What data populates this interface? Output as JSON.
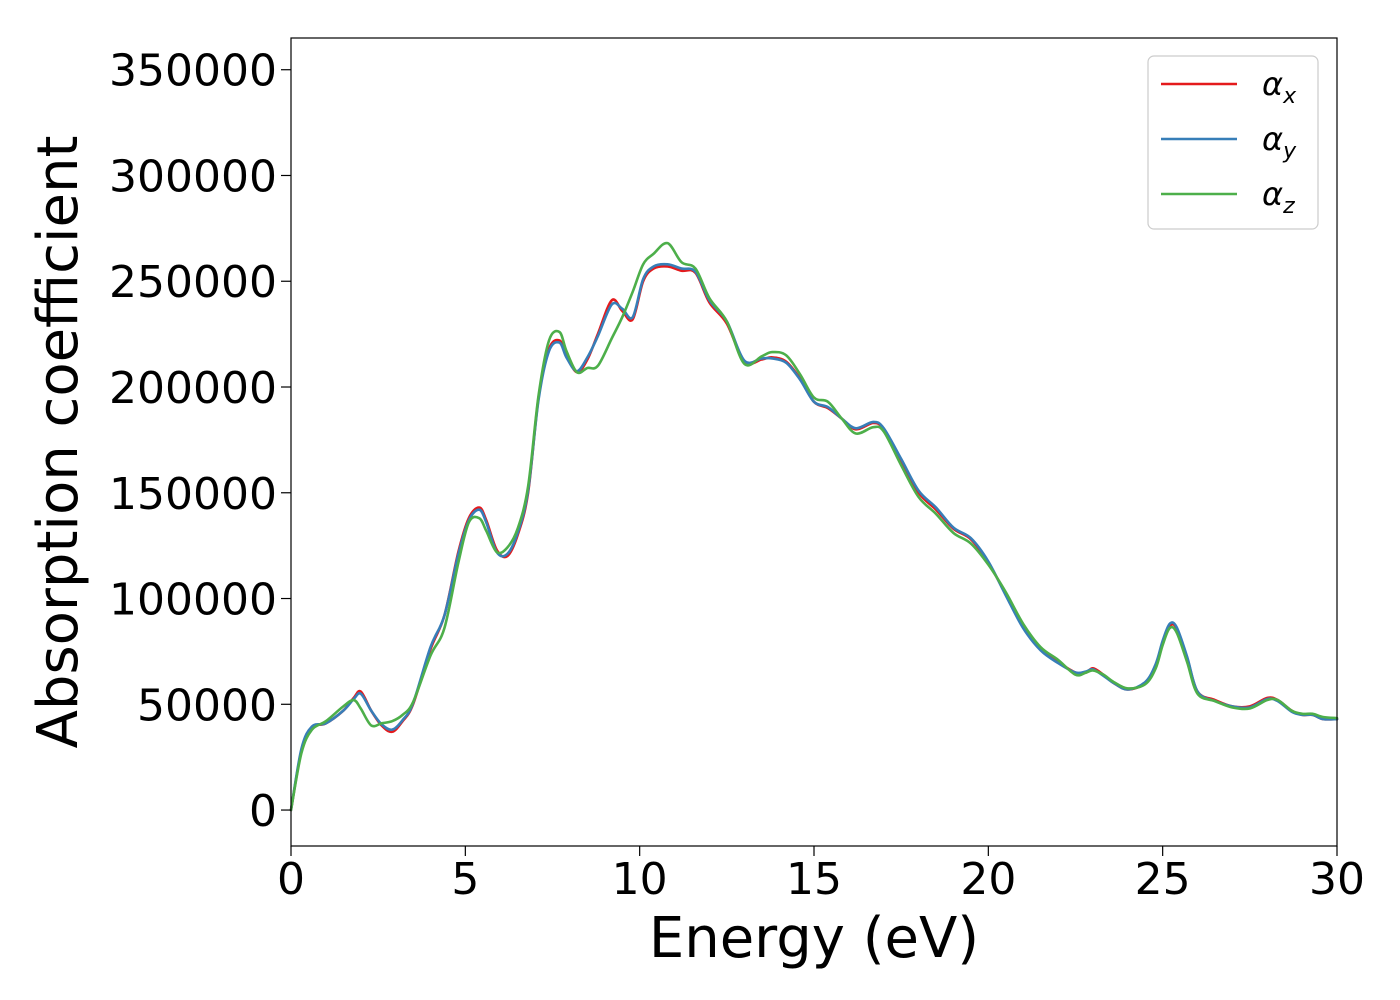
{
  "chart_data": {
    "type": "line",
    "title": "",
    "xlabel": "Energy (eV)",
    "ylabel": "Absorption coefficient",
    "xlim": [
      0,
      30
    ],
    "ylim": [
      -17000,
      365000
    ],
    "xticks": [
      0,
      5,
      10,
      15,
      20,
      25,
      30
    ],
    "xtick_labels": [
      "0",
      "5",
      "10",
      "15",
      "20",
      "25",
      "30"
    ],
    "yticks": [
      0,
      50000,
      100000,
      150000,
      200000,
      250000,
      300000,
      350000
    ],
    "ytick_labels": [
      "0",
      "50000",
      "100000",
      "150000",
      "200000",
      "250000",
      "300000",
      "350000"
    ],
    "grid": false,
    "legend_position": "top-right",
    "series": [
      {
        "name": "α",
        "subscript": "x",
        "color": "#e41a1c",
        "x": [
          0,
          0.3,
          0.6,
          1.0,
          1.5,
          1.8,
          2.0,
          2.3,
          2.6,
          2.9,
          3.2,
          3.5,
          4.0,
          4.4,
          4.8,
          5.1,
          5.4,
          5.6,
          5.9,
          6.2,
          6.5,
          6.8,
          7.1,
          7.4,
          7.7,
          7.9,
          8.2,
          8.5,
          8.8,
          9.2,
          9.5,
          9.8,
          10.1,
          10.4,
          10.8,
          11.2,
          11.6,
          12.0,
          12.5,
          13.0,
          13.5,
          13.8,
          14.2,
          14.6,
          15.0,
          15.4,
          15.8,
          16.2,
          16.7,
          17.0,
          17.5,
          18.0,
          18.5,
          19.0,
          19.5,
          20.0,
          20.5,
          21.0,
          21.5,
          22.0,
          22.5,
          22.8,
          23.0,
          23.3,
          23.6,
          24.0,
          24.5,
          24.8,
          25.0,
          25.2,
          25.4,
          25.7,
          26.0,
          26.5,
          27.0,
          27.5,
          28.0,
          28.3,
          28.7,
          29.0,
          29.3,
          29.6,
          30.0
        ],
        "y": [
          0,
          28000,
          39000,
          41000,
          47000,
          53000,
          56000,
          47000,
          40000,
          37000,
          42000,
          50000,
          76000,
          92000,
          122000,
          138000,
          143000,
          137000,
          123000,
          120000,
          130000,
          150000,
          195000,
          218000,
          222000,
          215000,
          207000,
          213000,
          225000,
          241000,
          236000,
          232000,
          250000,
          256000,
          257000,
          255000,
          254000,
          240000,
          230000,
          212000,
          213000,
          214000,
          212000,
          204000,
          193000,
          190000,
          185000,
          180000,
          183000,
          180000,
          165000,
          150000,
          142000,
          133000,
          128000,
          117000,
          102000,
          87000,
          76000,
          70000,
          65000,
          65000,
          67000,
          64000,
          60000,
          57000,
          60000,
          68000,
          79000,
          87000,
          86000,
          72000,
          56000,
          52000,
          49000,
          49000,
          53000,
          52000,
          47000,
          45000,
          45000,
          43000,
          43000
        ]
      },
      {
        "name": "α",
        "subscript": "y",
        "color": "#377eb8",
        "x": [
          0,
          0.3,
          0.6,
          1.0,
          1.5,
          1.8,
          2.0,
          2.3,
          2.6,
          2.9,
          3.2,
          3.5,
          4.0,
          4.4,
          4.8,
          5.1,
          5.4,
          5.6,
          5.9,
          6.2,
          6.5,
          6.8,
          7.1,
          7.4,
          7.7,
          7.9,
          8.2,
          8.5,
          8.8,
          9.2,
          9.5,
          9.8,
          10.1,
          10.4,
          10.8,
          11.2,
          11.6,
          12.0,
          12.5,
          13.0,
          13.5,
          13.8,
          14.2,
          14.6,
          15.0,
          15.4,
          15.8,
          16.2,
          16.7,
          17.0,
          17.5,
          18.0,
          18.5,
          19.0,
          19.5,
          20.0,
          20.5,
          21.0,
          21.5,
          22.0,
          22.5,
          22.8,
          23.0,
          23.3,
          23.6,
          24.0,
          24.5,
          24.8,
          25.0,
          25.2,
          25.4,
          25.7,
          26.0,
          26.5,
          27.0,
          27.5,
          28.0,
          28.3,
          28.7,
          29.0,
          29.3,
          29.6,
          30.0
        ],
        "y": [
          0,
          29000,
          39500,
          41000,
          47000,
          52500,
          55000,
          47000,
          40500,
          38000,
          42500,
          50500,
          77000,
          92000,
          121000,
          137000,
          142000,
          136000,
          122000,
          121000,
          131000,
          151000,
          194000,
          217000,
          221000,
          214000,
          207500,
          214000,
          224000,
          239000,
          237000,
          233000,
          251000,
          257000,
          258000,
          256000,
          254500,
          241000,
          231000,
          212500,
          213500,
          213500,
          211500,
          203500,
          193000,
          190500,
          185000,
          180500,
          183500,
          180500,
          166000,
          151000,
          143000,
          133500,
          128500,
          117500,
          101500,
          86000,
          75500,
          69500,
          65000,
          65500,
          66500,
          63500,
          60000,
          57000,
          60500,
          69000,
          80000,
          88000,
          86500,
          72500,
          56000,
          51500,
          49000,
          48500,
          52500,
          51500,
          46500,
          45000,
          45000,
          43000,
          43000
        ]
      },
      {
        "name": "α",
        "subscript": "z",
        "color": "#4daf4a",
        "x": [
          0,
          0.3,
          0.6,
          1.0,
          1.5,
          1.8,
          2.0,
          2.3,
          2.6,
          2.9,
          3.2,
          3.5,
          4.0,
          4.4,
          4.8,
          5.1,
          5.4,
          5.6,
          5.9,
          6.2,
          6.5,
          6.8,
          7.1,
          7.4,
          7.7,
          7.9,
          8.2,
          8.5,
          8.8,
          9.2,
          9.5,
          9.8,
          10.1,
          10.4,
          10.8,
          11.2,
          11.6,
          12.0,
          12.5,
          13.0,
          13.5,
          13.8,
          14.2,
          14.6,
          15.0,
          15.4,
          15.8,
          16.2,
          16.7,
          17.0,
          17.5,
          18.0,
          18.5,
          19.0,
          19.5,
          20.0,
          20.5,
          21.0,
          21.5,
          22.0,
          22.5,
          22.8,
          23.0,
          23.3,
          23.6,
          24.0,
          24.5,
          24.8,
          25.0,
          25.2,
          25.4,
          25.7,
          26.0,
          26.5,
          27.0,
          27.5,
          28.0,
          28.3,
          28.7,
          29.0,
          29.3,
          29.6,
          30.0
        ],
        "y": [
          0,
          27000,
          38000,
          42000,
          49000,
          52000,
          48000,
          40000,
          41000,
          42000,
          45000,
          51000,
          73000,
          86000,
          117000,
          136000,
          138000,
          132000,
          122000,
          124000,
          133000,
          153000,
          196000,
          222000,
          226000,
          217000,
          207000,
          209000,
          210000,
          223000,
          233000,
          245000,
          258000,
          263000,
          268000,
          259000,
          256000,
          242000,
          231000,
          211000,
          214500,
          216500,
          215000,
          206000,
          195000,
          193000,
          185000,
          178000,
          181000,
          179000,
          163000,
          148000,
          140000,
          131000,
          126000,
          116000,
          103000,
          88000,
          77000,
          71000,
          64000,
          65000,
          66000,
          64000,
          60500,
          57500,
          59500,
          67000,
          78000,
          86000,
          84000,
          70000,
          55000,
          51500,
          48500,
          48000,
          52000,
          52000,
          47000,
          45500,
          45500,
          44000,
          43500
        ]
      }
    ]
  }
}
